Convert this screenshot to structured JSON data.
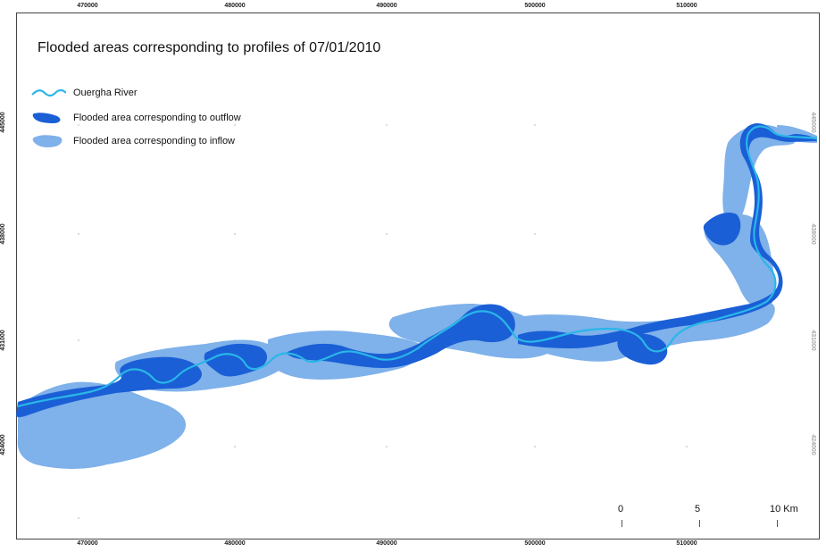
{
  "title": "Flooded areas corresponding to profiles of 07/01/2010",
  "legend": {
    "river": "Ouergha River",
    "outflow": "Flooded area corresponding to outflow",
    "inflow": "Flooded area corresponding to inflow"
  },
  "colors": {
    "river": "#29b6e8",
    "outflow": "#1a5fd6",
    "inflow": "#7fb1ea",
    "frame": "#444444"
  },
  "x_ticks": [
    "470000",
    "480000",
    "490000",
    "500000",
    "510000"
  ],
  "y_ticks": [
    "445000",
    "438000",
    "431000",
    "424000"
  ],
  "scale_bar": {
    "labels": [
      "0",
      "5",
      "10 Km"
    ]
  }
}
